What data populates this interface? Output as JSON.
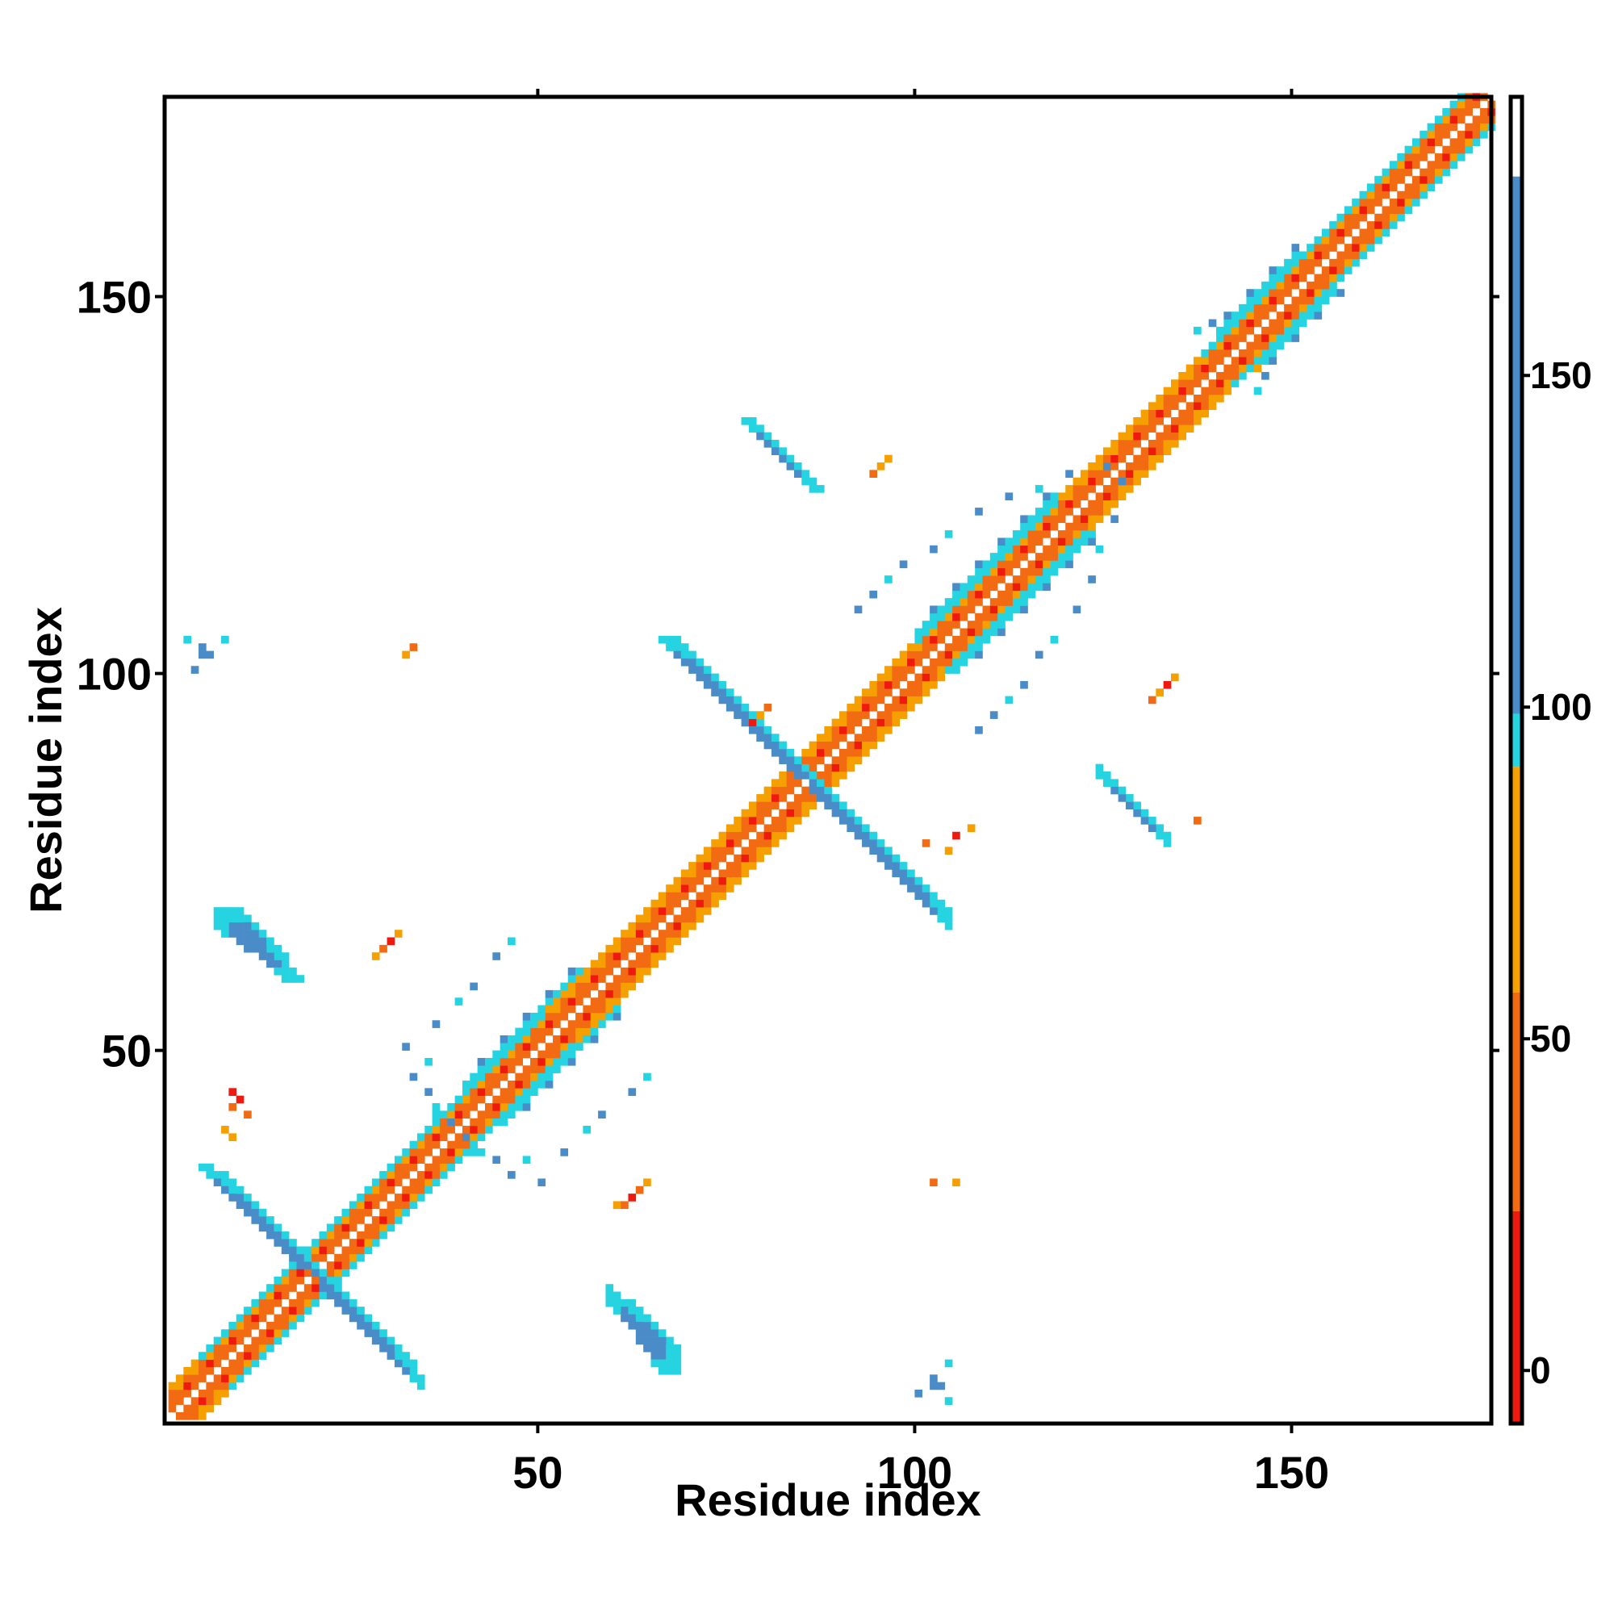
{
  "chart_data": {
    "type": "heatmap",
    "title": "",
    "xlabel": "Residue index",
    "ylabel": "Residue index",
    "xlim": [
      1,
      176
    ],
    "ylim": [
      1,
      176
    ],
    "xticks": [
      50,
      100,
      150
    ],
    "yticks": [
      50,
      100,
      150
    ],
    "colorbar": {
      "ticks": [
        0,
        50,
        100,
        150
      ],
      "range": [
        -8,
        192
      ],
      "segments": [
        {
          "from": -8,
          "to": 24,
          "color": "#ee1a0f"
        },
        {
          "from": 24,
          "to": 57,
          "color": "#f26a12"
        },
        {
          "from": 57,
          "to": 91,
          "color": "#f5a000"
        },
        {
          "from": 91,
          "to": 99,
          "color": "#26d3e0"
        },
        {
          "from": 99,
          "to": 180,
          "color": "#4a8cc8"
        },
        {
          "from": 180,
          "to": 192,
          "color": "#ffffff"
        }
      ]
    },
    "cell_colors": {
      "red": "#ee1a0f",
      "orange_red": "#f26a12",
      "orange": "#f5a000",
      "cyan": "#26d3e0",
      "blue": "#4a8cc8"
    },
    "features": [
      {
        "kind": "diagonal",
        "from": 1,
        "to": 176,
        "note": "helical i,i+3/i+4 band"
      },
      {
        "kind": "antiparallel",
        "cells": [
          [
            5,
            34
          ],
          [
            32,
            8
          ]
        ],
        "series": "blue"
      },
      {
        "kind": "antiparallel",
        "cells": [
          [
            22,
            22
          ],
          [
            34,
            5
          ]
        ],
        "series": "blue"
      },
      {
        "kind": "antiparallel",
        "cells": [
          [
            60,
            16
          ],
          [
            66,
            7
          ]
        ],
        "series": "blue"
      },
      {
        "kind": "antiparallel",
        "cells": [
          [
            8,
            68
          ],
          [
            16,
            59
          ]
        ],
        "series": "blue"
      },
      {
        "kind": "antiparallel",
        "cells": [
          [
            66,
            104
          ],
          [
            103,
            68
          ]
        ],
        "series": "blue"
      },
      {
        "kind": "antiparallel",
        "cells": [
          [
            77,
            133
          ],
          [
            86,
            124
          ]
        ],
        "series": "blue"
      },
      {
        "kind": "antiparallel",
        "cells": [
          [
            122,
            86
          ],
          [
            133,
            77
          ]
        ],
        "series": "blue"
      }
    ]
  }
}
